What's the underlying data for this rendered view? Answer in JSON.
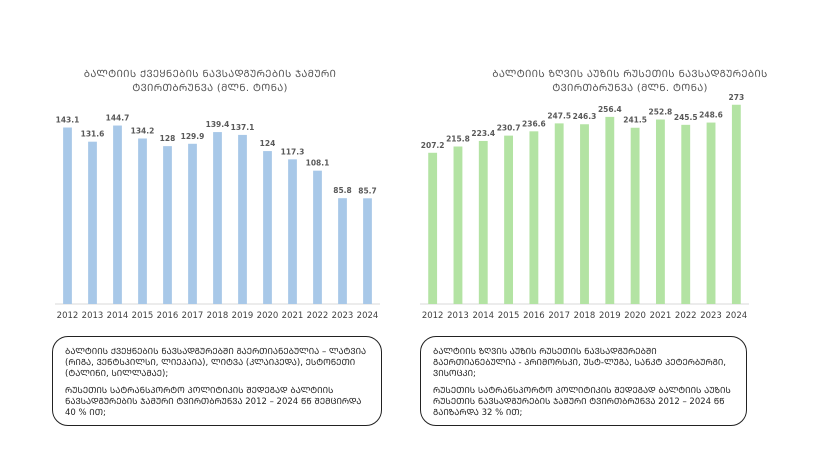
{
  "colors": {
    "left_bar": "#a8c8e8",
    "right_bar": "#b3e3a3",
    "text": "#555555",
    "axis": "#d9d9d9"
  },
  "left": {
    "title": "ᲑᲐᲚᲢᲘᲘᲡ ᲥᲕᲔᲧᲜᲔᲑᲘᲡ ᲜᲐᲕᲡᲐᲓᲒᲣᲠᲔᲑᲘᲡ ᲯᲐᲛᲣᲠᲘ\nᲢᲕᲘᲠᲗᲑᲠᲣᲜᲕᲐ (ᲛᲚᲜ. ᲢᲝᲜᲐ)",
    "note_p1": "ᲑᲐᲚᲢᲘᲘᲡ ᲥᲕᲔᲧᲜᲔᲑᲘᲡ ᲜᲐᲕᲡᲐᲓᲒᲣᲠᲔᲑᲨᲘ ᲒᲐᲔᲠᲗᲘᲐᲜᲔᲑᲣᲚᲘᲐ – ᲚᲐᲢᲕᲘᲐ (ᲠᲘᲒᲐ, ᲕᲔᲜᲢᲡᲞᲘᲚᲡᲘ, ᲚᲘᲔᲞᲐᲘᲐ), ᲚᲘᲢᲕᲐ (ᲙᲚᲐᲘᲞᲔᲓᲐ), ᲔᲡᲢᲝᲜᲔᲗᲘ (ᲢᲐᲚᲘᲜᲘ, ᲡᲘᲚᲚᲐᲛᲐᲔ);",
    "note_p2": "ᲠᲣᲡᲔᲗᲘᲡ ᲡᲐᲢᲠᲐᲜᲡᲞᲝᲠᲢᲝ ᲞᲝᲚᲘᲢᲘᲙᲘᲡ ᲨᲔᲓᲔᲒᲐᲓ ᲑᲐᲚᲢᲘᲘᲡ ᲜᲐᲕᲡᲐᲓᲒᲣᲠᲔᲑᲘᲡ ᲯᲐᲛᲣᲠᲘ ᲢᲕᲘᲠᲗᲑᲠᲣᲜᲕᲐ 2012 – 2024 ᲬᲬ ᲨᲔᲛᲪᲘᲠᲓᲐ 40 % ᲘᲗ;"
  },
  "right": {
    "title": "ᲑᲐᲚᲢᲘᲘᲡ ᲖᲦᲕᲘᲡ ᲐᲣᲖᲘᲡ ᲠᲣᲡᲔᲗᲘᲡ ᲜᲐᲕᲡᲐᲓᲒᲣᲠᲔᲑᲘᲡ\nᲢᲕᲘᲠᲗᲑᲠᲣᲜᲕᲐ (ᲛᲚᲜ. ᲢᲝᲜᲐ)",
    "note_p1": "ᲑᲐᲚᲢᲘᲘᲡ ᲖᲦᲕᲘᲡ ᲐᲣᲖᲘᲡ ᲠᲣᲡᲔᲗᲘᲡ ᲜᲐᲕᲡᲐᲓᲒᲣᲠᲔᲑᲨᲘ ᲒᲐᲔᲠᲗᲘᲐᲜᲔᲑᲣᲚᲘᲐ - ᲞᲠᲘᲛᲝᲠᲡᲙᲘ, ᲣᲡᲢ-ᲚᲣᲒᲐ, ᲡᲐᲜᲙᲢ ᲞᲔᲢᲔᲠᲑᲣᲠᲒᲘ, ᲕᲘᲡᲝᲪᲙᲘ;",
    "note_p2": "ᲠᲣᲡᲔᲗᲘᲡ ᲡᲐᲢᲠᲐᲜᲡᲞᲝᲠᲢᲝ ᲞᲝᲚᲘᲢᲘᲙᲘᲡ ᲨᲔᲓᲔᲒᲐᲓ ᲑᲐᲚᲢᲘᲘᲡ ᲐᲣᲖᲘᲡ ᲠᲣᲡᲔᲗᲘᲡ ᲜᲐᲕᲡᲐᲓᲒᲣᲠᲔᲑᲘᲡ ᲯᲐᲛᲣᲠᲘ ᲢᲕᲘᲠᲗᲑᲠᲣᲜᲕᲐ 2012 – 2024 ᲬᲬ ᲒᲐᲘᲖᲐᲠᲓᲐ 32 % ᲘᲗ;"
  },
  "chart_data": [
    {
      "type": "bar",
      "title": "ᲑᲐᲚᲢᲘᲘᲡ ᲥᲕᲔᲧᲜᲔᲑᲘᲡ ᲜᲐᲕᲡᲐᲓᲒᲣᲠᲔᲑᲘᲡ ᲯᲐᲛᲣᲠᲘ ᲢᲕᲘᲠᲗᲑᲠᲣᲜᲕᲐ (ᲛᲚᲜ. ᲢᲝᲜᲐ)",
      "categories": [
        "2012",
        "2013",
        "2014",
        "2015",
        "2016",
        "2017",
        "2018",
        "2019",
        "2020",
        "2021",
        "2022",
        "2023",
        "2024"
      ],
      "values": [
        143.1,
        131.6,
        144.7,
        134.2,
        128,
        129.9,
        139.4,
        137.1,
        124,
        117.3,
        108.1,
        85.8,
        85.7
      ],
      "labels": [
        "143.1",
        "131.6",
        "144.7",
        "134.2",
        "128",
        "129.9",
        "139.4",
        "137.1",
        "124",
        "117.3",
        "108.1",
        "85.8",
        "85.7"
      ],
      "ylim": [
        0,
        150
      ],
      "grid": false
    },
    {
      "type": "bar",
      "title": "ᲑᲐᲚᲢᲘᲘᲡ ᲖᲦᲕᲘᲡ ᲐᲣᲖᲘᲡ ᲠᲣᲡᲔᲗᲘᲡ ᲜᲐᲕᲡᲐᲓᲒᲣᲠᲔᲑᲘᲡ ᲯᲐᲛᲣᲠᲘ ᲢᲕᲘᲠᲗᲑᲠᲣᲜᲕᲐ (ᲛᲚᲜ. ᲢᲝᲜᲐ)",
      "categories": [
        "2012",
        "2013",
        "2014",
        "2015",
        "2016",
        "2017",
        "2018",
        "2019",
        "2020",
        "2021",
        "2022",
        "2023",
        "2024"
      ],
      "values": [
        207.2,
        215.8,
        223.4,
        230.7,
        236.6,
        247.5,
        246.3,
        256.4,
        241.5,
        252.8,
        245.5,
        248.6,
        273
      ],
      "labels": [
        "207.2",
        "215.8",
        "223.4",
        "230.7",
        "236.6",
        "247.5",
        "246.3",
        "256.4",
        "241.5",
        "252.8",
        "245.5",
        "248.6",
        "273"
      ],
      "ylim": [
        0,
        285
      ],
      "grid": false
    }
  ]
}
